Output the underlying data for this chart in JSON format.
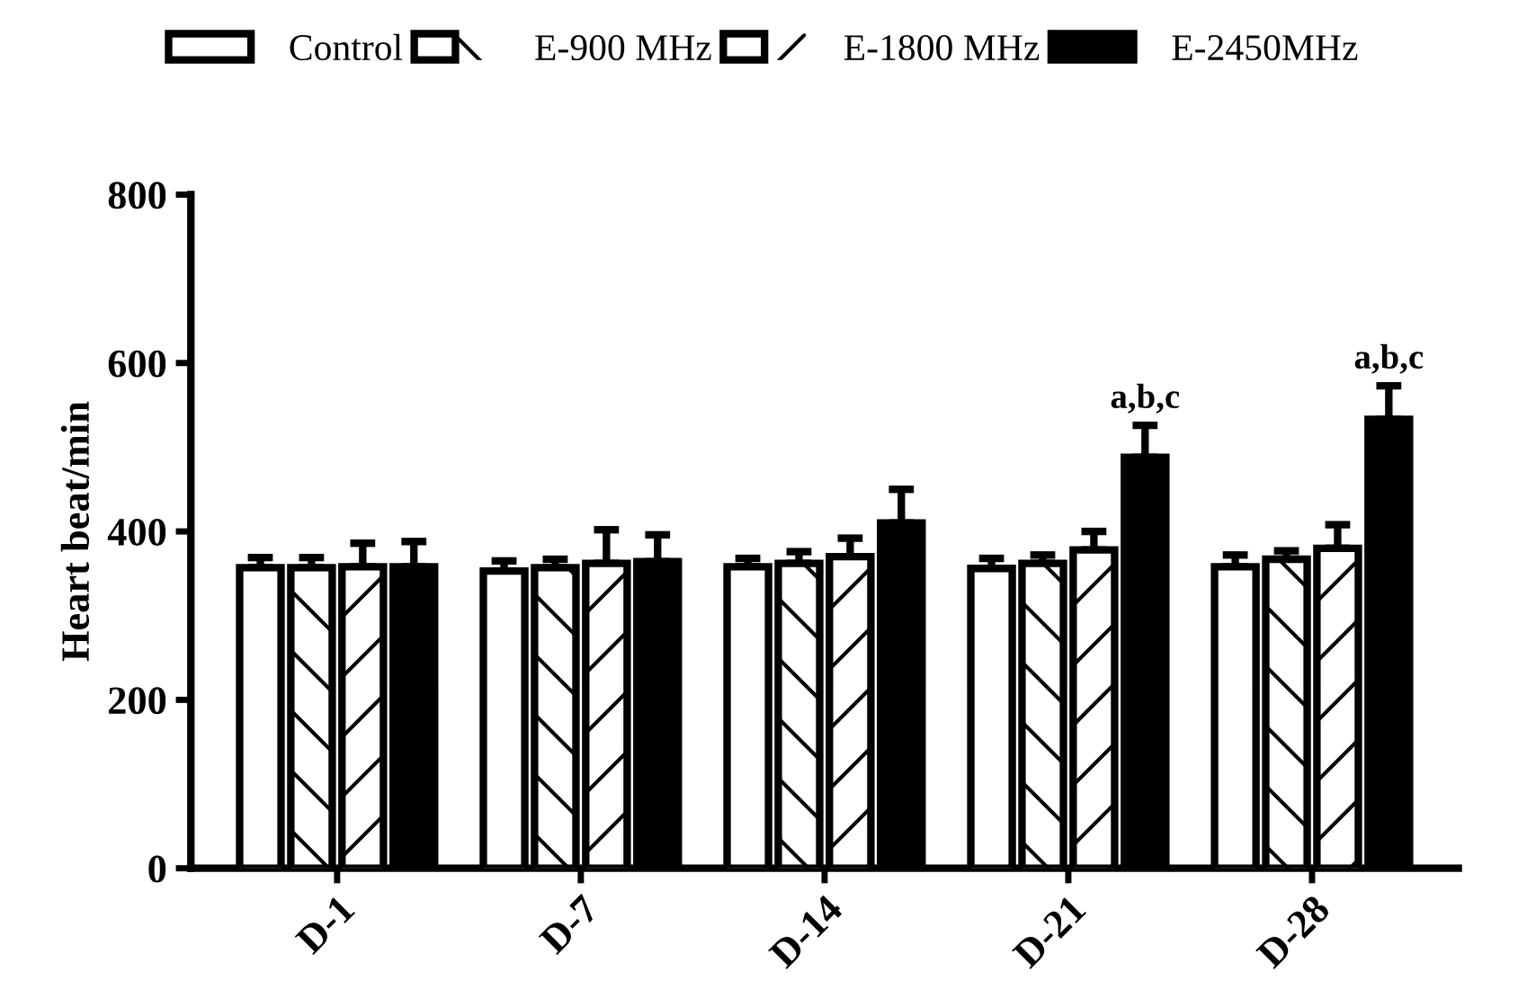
{
  "chart_data": {
    "type": "bar",
    "ylabel": "Heart beat/min",
    "categories": [
      "D-1",
      "D-7",
      "D-14",
      "D-21",
      "D-28"
    ],
    "series": [
      {
        "name": "Control",
        "color": "#ffffff",
        "values": [
          357,
          353,
          358,
          356,
          358
        ],
        "errors": [
          [
            357,
            369
          ],
          [
            353,
            365
          ],
          [
            358,
            368
          ],
          [
            356,
            368
          ],
          [
            358,
            372
          ]
        ]
      },
      {
        "name": "E-900 MHz",
        "color": "#ffffff",
        "values": [
          357,
          357,
          362,
          362,
          367
        ],
        "errors": [
          [
            357,
            369
          ],
          [
            357,
            367
          ],
          [
            362,
            376
          ],
          [
            362,
            372
          ],
          [
            367,
            377
          ]
        ]
      },
      {
        "name": "E-1800 MHz",
        "color": "#ffffff",
        "values": [
          358,
          362,
          370,
          378,
          380
        ],
        "errors": [
          [
            358,
            386
          ],
          [
            362,
            402
          ],
          [
            370,
            392
          ],
          [
            378,
            400
          ],
          [
            380,
            408
          ]
        ]
      },
      {
        "name": "E-2450MHz",
        "color": "#000000",
        "values": [
          358,
          364,
          410,
          488,
          533
        ],
        "errors": [
          [
            358,
            388
          ],
          [
            364,
            396
          ],
          [
            410,
            450
          ],
          [
            488,
            526
          ],
          [
            533,
            573
          ]
        ]
      }
    ],
    "ylim": [
      0,
      800
    ],
    "yticks": [
      0,
      200,
      400,
      600,
      800
    ],
    "annotations": [
      "a,b,c",
      "a,b,c"
    ],
    "legend": "top",
    "grid": false
  }
}
